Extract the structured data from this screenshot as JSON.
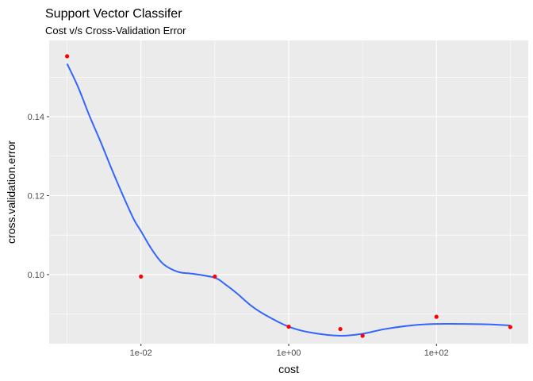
{
  "chart_data": {
    "type": "scatter",
    "title": "Support Vector Classifer",
    "subtitle": "Cost v/s Cross-Validation Error",
    "xlabel": "cost",
    "ylabel": "cross.validation.error",
    "x_scale": "log10",
    "xlim": [
      0.000572,
      1749
    ],
    "ylim": [
      0.08249,
      0.1593
    ],
    "x_ticks": [
      {
        "value": 0.01,
        "label": "1e-02"
      },
      {
        "value": 1,
        "label": "1e+00"
      },
      {
        "value": 100,
        "label": "1e+02"
      }
    ],
    "y_ticks": [
      {
        "value": 0.1,
        "label": "0.10"
      },
      {
        "value": 0.12,
        "label": "0.12"
      },
      {
        "value": 0.14,
        "label": "0.14"
      }
    ],
    "grid": true,
    "points": {
      "color": "#ff0000",
      "x": [
        0.001,
        0.01,
        0.1,
        1,
        5,
        10,
        100,
        1000
      ],
      "y": [
        0.1553,
        0.0995,
        0.0995,
        0.0868,
        0.0862,
        0.0845,
        0.0893,
        0.0867
      ]
    },
    "smooth": {
      "color": "#3366ff",
      "x": [
        0.001,
        0.00141,
        0.002,
        0.00282,
        0.004,
        0.00562,
        0.008,
        0.01,
        0.0141,
        0.02,
        0.0316,
        0.05,
        0.1,
        0.141,
        0.2,
        0.316,
        0.5,
        1,
        2,
        5,
        10,
        20,
        50,
        100,
        200,
        500,
        1000
      ],
      "y": [
        0.1534,
        0.1475,
        0.1403,
        0.1338,
        0.1268,
        0.1203,
        0.114,
        0.111,
        0.1063,
        0.1027,
        0.1007,
        0.1002,
        0.0992,
        0.0974,
        0.0952,
        0.092,
        0.0896,
        0.0868,
        0.0853,
        0.0845,
        0.085,
        0.0862,
        0.0872,
        0.0875,
        0.0875,
        0.0874,
        0.0871
      ]
    }
  }
}
